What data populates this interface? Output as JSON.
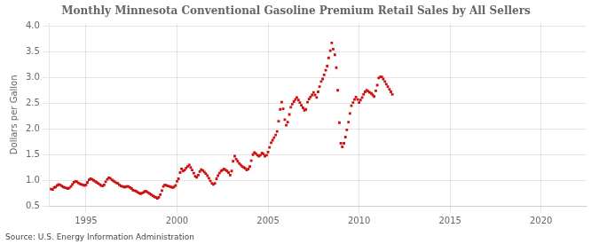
{
  "chart_data": {
    "type": "scatter",
    "title": "Monthly Minnesota Conventional Gasoline Premium Retail Sales by All Sellers",
    "ylabel": "Dollars per Gallon",
    "annotations": [
      "Source: U.S. Energy Information Administration"
    ],
    "color": "#CC1111",
    "marker": "square",
    "grid": true,
    "xlim": [
      1993.0,
      2022.5
    ],
    "ylim": [
      0.5,
      4.05
    ],
    "xticks": [
      1995,
      2000,
      2005,
      2010,
      2015,
      2020
    ],
    "yticks": [
      0.5,
      {
        "value": 1.0,
        "label": "1.0"
      },
      1.5,
      {
        "value": 2.0,
        "label": "2.0"
      },
      2.5,
      {
        "value": 3.0,
        "label": "3.0"
      },
      3.5,
      {
        "value": 4.0,
        "label": "4.0"
      }
    ],
    "x": [
      1993.08,
      1993.17,
      1993.25,
      1993.33,
      1993.42,
      1993.5,
      1993.58,
      1993.67,
      1993.75,
      1993.83,
      1993.92,
      1994.0,
      1994.08,
      1994.17,
      1994.25,
      1994.33,
      1994.42,
      1994.5,
      1994.58,
      1994.67,
      1994.75,
      1994.83,
      1994.92,
      1995.0,
      1995.08,
      1995.17,
      1995.25,
      1995.33,
      1995.42,
      1995.5,
      1995.58,
      1995.67,
      1995.75,
      1995.83,
      1995.92,
      1996.0,
      1996.08,
      1996.17,
      1996.25,
      1996.33,
      1996.42,
      1996.5,
      1996.58,
      1996.67,
      1996.75,
      1996.83,
      1996.92,
      1997.0,
      1997.08,
      1997.17,
      1997.25,
      1997.33,
      1997.42,
      1997.5,
      1997.58,
      1997.67,
      1997.75,
      1997.83,
      1997.92,
      1998.0,
      1998.08,
      1998.17,
      1998.25,
      1998.33,
      1998.42,
      1998.5,
      1998.58,
      1998.67,
      1998.75,
      1998.83,
      1998.92,
      1999.0,
      1999.08,
      1999.17,
      1999.25,
      1999.33,
      1999.42,
      1999.5,
      1999.58,
      1999.67,
      1999.75,
      1999.83,
      1999.92,
      2000.0,
      2000.08,
      2000.17,
      2000.25,
      2000.33,
      2000.42,
      2000.5,
      2000.58,
      2000.67,
      2000.75,
      2000.83,
      2000.92,
      2001.0,
      2001.08,
      2001.17,
      2001.25,
      2001.33,
      2001.42,
      2001.5,
      2001.58,
      2001.67,
      2001.75,
      2001.83,
      2001.92,
      2002.0,
      2002.08,
      2002.17,
      2002.25,
      2002.33,
      2002.42,
      2002.5,
      2002.58,
      2002.67,
      2002.75,
      2002.83,
      2002.92,
      2003.0,
      2003.08,
      2003.17,
      2003.25,
      2003.33,
      2003.42,
      2003.5,
      2003.58,
      2003.67,
      2003.75,
      2003.83,
      2003.92,
      2004.0,
      2004.08,
      2004.17,
      2004.25,
      2004.33,
      2004.42,
      2004.5,
      2004.58,
      2004.67,
      2004.75,
      2004.83,
      2004.92,
      2005.0,
      2005.08,
      2005.17,
      2005.25,
      2005.33,
      2005.42,
      2005.5,
      2005.58,
      2005.67,
      2005.75,
      2005.83,
      2005.92,
      2006.0,
      2006.08,
      2006.17,
      2006.25,
      2006.33,
      2006.42,
      2006.5,
      2006.58,
      2006.67,
      2006.75,
      2006.83,
      2006.92,
      2007.0,
      2007.08,
      2007.17,
      2007.25,
      2007.33,
      2007.42,
      2007.5,
      2007.58,
      2007.67,
      2007.75,
      2007.83,
      2007.92,
      2008.0,
      2008.08,
      2008.17,
      2008.25,
      2008.33,
      2008.42,
      2008.5,
      2008.58,
      2008.67,
      2008.75,
      2008.83,
      2008.92,
      2009.0,
      2009.08,
      2009.17,
      2009.25,
      2009.33,
      2009.42,
      2009.5,
      2009.58,
      2009.67,
      2009.75,
      2009.83,
      2009.92,
      2010.0,
      2010.08,
      2010.17,
      2010.25,
      2010.33,
      2010.42,
      2010.5,
      2010.58,
      2010.67,
      2010.75,
      2010.83,
      2010.92,
      2011.0,
      2011.08,
      2011.17,
      2011.25,
      2011.33,
      2011.42,
      2011.5,
      2011.58,
      2011.67,
      2011.75,
      2011.83
    ],
    "values": [
      0.83,
      0.82,
      0.86,
      0.87,
      0.9,
      0.92,
      0.91,
      0.89,
      0.87,
      0.86,
      0.85,
      0.84,
      0.85,
      0.88,
      0.92,
      0.96,
      0.98,
      0.97,
      0.95,
      0.93,
      0.92,
      0.91,
      0.9,
      0.91,
      0.96,
      1.01,
      1.03,
      1.02,
      1.0,
      0.98,
      0.96,
      0.94,
      0.92,
      0.9,
      0.89,
      0.91,
      0.97,
      1.02,
      1.05,
      1.04,
      1.01,
      0.99,
      0.97,
      0.95,
      0.94,
      0.91,
      0.89,
      0.88,
      0.87,
      0.87,
      0.88,
      0.88,
      0.86,
      0.84,
      0.81,
      0.8,
      0.79,
      0.77,
      0.75,
      0.74,
      0.75,
      0.77,
      0.79,
      0.78,
      0.76,
      0.74,
      0.72,
      0.7,
      0.68,
      0.67,
      0.65,
      0.67,
      0.72,
      0.8,
      0.88,
      0.91,
      0.9,
      0.89,
      0.88,
      0.87,
      0.86,
      0.87,
      0.9,
      0.98,
      1.03,
      1.15,
      1.22,
      1.18,
      1.2,
      1.24,
      1.27,
      1.3,
      1.25,
      1.2,
      1.14,
      1.08,
      1.06,
      1.1,
      1.17,
      1.21,
      1.19,
      1.16,
      1.13,
      1.09,
      1.04,
      0.99,
      0.94,
      0.92,
      0.94,
      1.03,
      1.09,
      1.14,
      1.18,
      1.2,
      1.22,
      1.2,
      1.18,
      1.15,
      1.1,
      1.18,
      1.37,
      1.47,
      1.41,
      1.37,
      1.33,
      1.3,
      1.27,
      1.25,
      1.23,
      1.2,
      1.22,
      1.27,
      1.38,
      1.5,
      1.54,
      1.52,
      1.49,
      1.47,
      1.49,
      1.53,
      1.51,
      1.47,
      1.49,
      1.55,
      1.64,
      1.73,
      1.78,
      1.83,
      1.88,
      1.95,
      2.15,
      2.38,
      2.52,
      2.39,
      2.18,
      2.07,
      2.13,
      2.28,
      2.42,
      2.48,
      2.53,
      2.57,
      2.61,
      2.56,
      2.51,
      2.46,
      2.41,
      2.36,
      2.38,
      2.52,
      2.58,
      2.62,
      2.66,
      2.71,
      2.66,
      2.61,
      2.72,
      2.82,
      2.92,
      2.97,
      3.05,
      3.14,
      3.22,
      3.38,
      3.52,
      3.67,
      3.55,
      3.44,
      3.19,
      2.75,
      2.12,
      1.72,
      1.65,
      1.72,
      1.84,
      1.98,
      2.13,
      2.3,
      2.45,
      2.51,
      2.57,
      2.62,
      2.57,
      2.51,
      2.56,
      2.61,
      2.67,
      2.72,
      2.75,
      2.73,
      2.71,
      2.69,
      2.66,
      2.63,
      2.74,
      2.85,
      2.99,
      3.01,
      3.01,
      2.97,
      2.92,
      2.87,
      2.82,
      2.77,
      2.72,
      2.67
    ]
  }
}
